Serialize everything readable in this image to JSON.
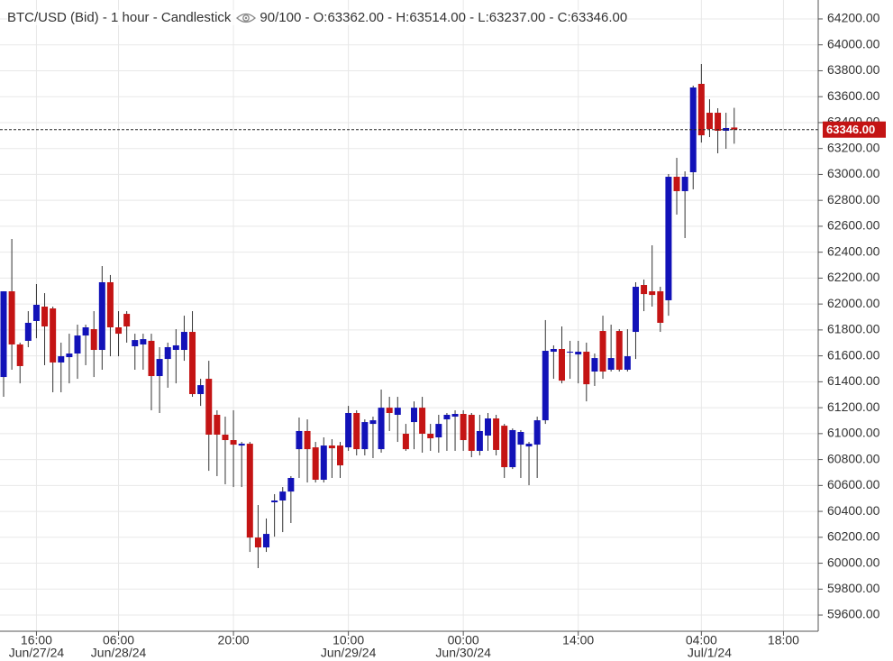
{
  "chart_data": {
    "type": "candlestick",
    "title": "BTC/USD (Bid) - 1 hour - Candlestick",
    "info": "90/100 - O:63362.00 - H:63514.00 - L:63237.00 - C:63346.00",
    "categories": [
      null,
      null,
      null,
      null,
      "16:00",
      null,
      null,
      null,
      null,
      null,
      null,
      null,
      null,
      null,
      "06:00",
      null,
      null,
      null,
      null,
      null,
      null,
      null,
      null,
      null,
      null,
      null,
      null,
      null,
      "20:00",
      null,
      null,
      null,
      null,
      null,
      null,
      null,
      null,
      null,
      null,
      null,
      null,
      null,
      "10:00",
      null,
      null,
      null,
      null,
      null,
      null,
      null,
      null,
      null,
      null,
      null,
      null,
      null,
      "00:00",
      null,
      null,
      null,
      null,
      null,
      null,
      null,
      null,
      null,
      null,
      null,
      null,
      null,
      "14:00",
      null,
      null,
      null,
      null,
      null,
      null,
      null,
      null,
      null,
      null,
      null,
      null,
      null,
      null,
      "04:00",
      null,
      null,
      null,
      null,
      null,
      null,
      null,
      null,
      null,
      "18:00"
    ],
    "date_labels": [
      null,
      null,
      null,
      null,
      "Jun/27/24",
      null,
      null,
      null,
      null,
      null,
      null,
      null,
      null,
      null,
      "Jun/28/24",
      null,
      null,
      null,
      null,
      null,
      null,
      null,
      null,
      null,
      null,
      null,
      null,
      null,
      null,
      null,
      null,
      null,
      null,
      null,
      null,
      null,
      null,
      null,
      null,
      null,
      null,
      null,
      "Jun/29/24",
      null,
      null,
      null,
      null,
      null,
      null,
      null,
      null,
      null,
      null,
      null,
      null,
      null,
      "Jun/30/24",
      null,
      null,
      null,
      null,
      null,
      null,
      null,
      null,
      null,
      null,
      null,
      null,
      null,
      null,
      null,
      null,
      null,
      null,
      null,
      null,
      null,
      null,
      null,
      null,
      null,
      null,
      null,
      null,
      null,
      "Jul/1/24",
      null,
      null,
      null,
      null,
      null,
      null,
      null,
      null,
      null,
      null
    ],
    "open": [
      61437,
      62098,
      61688,
      61716,
      61869,
      61980,
      61966,
      61549,
      61590,
      61618,
      61757,
      61806,
      61646,
      62168,
      61820,
      61924,
      61674,
      61688,
      61716,
      61444,
      61576,
      61646,
      61646,
      61785,
      61305,
      61423,
      61145,
      60992,
      60950,
      60908,
      60922,
      60198,
      60122,
      60470,
      60484,
      60553,
      60880,
      61020,
      60894,
      60644,
      60908,
      60908,
      60894,
      61159,
      60880,
      61075,
      60880,
      61200,
      61145,
      60999,
      61089,
      61200,
      60999,
      60971,
      61110,
      61131,
      61152,
      61145,
      60867,
      60985,
      61117,
      61061,
      60741,
      60915,
      60901,
      60915,
      61103,
      61632,
      61653,
      61625,
      61611,
      61632,
      61479,
      61792,
      61493,
      61792,
      61493,
      61785,
      62147,
      62098,
      62098,
      62029,
      62982,
      62871,
      63017,
      63699,
      63476,
      63476,
      63337,
      63362,
      null,
      null,
      null,
      null,
      null,
      null
    ],
    "high": [
      62098,
      62502,
      61702,
      61945,
      62154,
      62084,
      61980,
      61702,
      61771,
      61841,
      61841,
      61945,
      62293,
      62224,
      61945,
      61945,
      61771,
      61771,
      61771,
      61667,
      61702,
      61806,
      61910,
      61945,
      61423,
      61562,
      61180,
      61131,
      61180,
      60936,
      60936,
      60449,
      60345,
      60533,
      60588,
      60672,
      61124,
      61110,
      60936,
      60971,
      60957,
      60936,
      61214,
      61180,
      61110,
      61131,
      61340,
      61284,
      61284,
      61075,
      61249,
      61284,
      61075,
      61145,
      61159,
      61180,
      61180,
      61159,
      61145,
      61159,
      61145,
      61075,
      61040,
      61027,
      60936,
      61131,
      61876,
      61681,
      61827,
      61716,
      61716,
      61702,
      61618,
      61910,
      61841,
      61806,
      61806,
      62168,
      62189,
      62453,
      62133,
      63003,
      63128,
      63024,
      63685,
      63852,
      63580,
      63511,
      63476,
      63514,
      null,
      null,
      null,
      null,
      null,
      null
    ],
    "low": [
      61284,
      61493,
      61388,
      61667,
      61736,
      61528,
      61319,
      61319,
      61388,
      61423,
      61528,
      61437,
      61493,
      61597,
      61597,
      61702,
      61493,
      61493,
      61180,
      61159,
      61354,
      61388,
      61562,
      61284,
      61214,
      60713,
      60672,
      60609,
      60588,
      60588,
      60087,
      59962,
      60087,
      60205,
      60240,
      60310,
      60658,
      60623,
      60623,
      60623,
      60658,
      60658,
      60867,
      60832,
      60832,
      60811,
      60853,
      61020,
      60936,
      60867,
      60880,
      60853,
      60867,
      60853,
      60867,
      60867,
      60867,
      60818,
      60832,
      60867,
      60832,
      60658,
      60727,
      60658,
      60602,
      60658,
      61075,
      61423,
      61388,
      61423,
      61388,
      61249,
      61368,
      61423,
      61479,
      61479,
      61479,
      61576,
      61945,
      61980,
      61785,
      61910,
      62690,
      62509,
      62885,
      63246,
      63288,
      63163,
      63198,
      63237,
      null,
      null,
      null,
      null,
      null,
      null
    ],
    "close": [
      62098,
      61688,
      61521,
      61855,
      61994,
      61827,
      61549,
      61597,
      61618,
      61757,
      61820,
      61646,
      62168,
      61820,
      61771,
      61827,
      61722,
      61729,
      61444,
      61576,
      61667,
      61681,
      61785,
      61305,
      61374,
      60992,
      60992,
      60950,
      60915,
      60922,
      60198,
      60122,
      60226,
      60484,
      60553,
      60658,
      61020,
      60880,
      60644,
      60908,
      60887,
      60755,
      61159,
      60880,
      61089,
      61103,
      61200,
      61159,
      61200,
      60880,
      61200,
      60999,
      60964,
      61075,
      61145,
      61152,
      60950,
      60867,
      61020,
      61117,
      60874,
      60741,
      61027,
      61013,
      60922,
      61103,
      61639,
      61653,
      61409,
      61632,
      61632,
      61381,
      61583,
      61479,
      61583,
      61493,
      61597,
      62133,
      62077,
      62070,
      61855,
      62982,
      62871,
      62982,
      63671,
      63302,
      63351,
      63337,
      63358,
      63346,
      null,
      null,
      null,
      null,
      null,
      null
    ],
    "up_color": "#1212b8",
    "down_color": "#c41414",
    "ylim": [
      59475,
      64346
    ],
    "yticks": [
      {
        "value": 59600,
        "label": "59600.00"
      },
      {
        "value": 59800,
        "label": "59800.00"
      },
      {
        "value": 60000,
        "label": "60000.00"
      },
      {
        "value": 60200,
        "label": "60200.00"
      },
      {
        "value": 60400,
        "label": "60400.00"
      },
      {
        "value": 60600,
        "label": "60600.00"
      },
      {
        "value": 60800,
        "label": "60800.00"
      },
      {
        "value": 61000,
        "label": "61000.00"
      },
      {
        "value": 61200,
        "label": "61200.00"
      },
      {
        "value": 61400,
        "label": "61400.00"
      },
      {
        "value": 61600,
        "label": "61600.00"
      },
      {
        "value": 61800,
        "label": "61800.00"
      },
      {
        "value": 62000,
        "label": "62000.00"
      },
      {
        "value": 62200,
        "label": "62200.00"
      },
      {
        "value": 62400,
        "label": "62400.00"
      },
      {
        "value": 62600,
        "label": "62600.00"
      },
      {
        "value": 62800,
        "label": "62800.00"
      },
      {
        "value": 63000,
        "label": "63000.00"
      },
      {
        "value": 63200,
        "label": "63200.00"
      },
      {
        "value": 63400,
        "label": "63400.00"
      },
      {
        "value": 63600,
        "label": "63600.00"
      },
      {
        "value": 63800,
        "label": "63800.00"
      },
      {
        "value": 64000,
        "label": "64000.00"
      },
      {
        "value": 64200,
        "label": "64200.00"
      }
    ],
    "last_price": {
      "value": 63346,
      "label": "63346.00"
    },
    "last_price_color": "#c41414",
    "grid": true
  }
}
